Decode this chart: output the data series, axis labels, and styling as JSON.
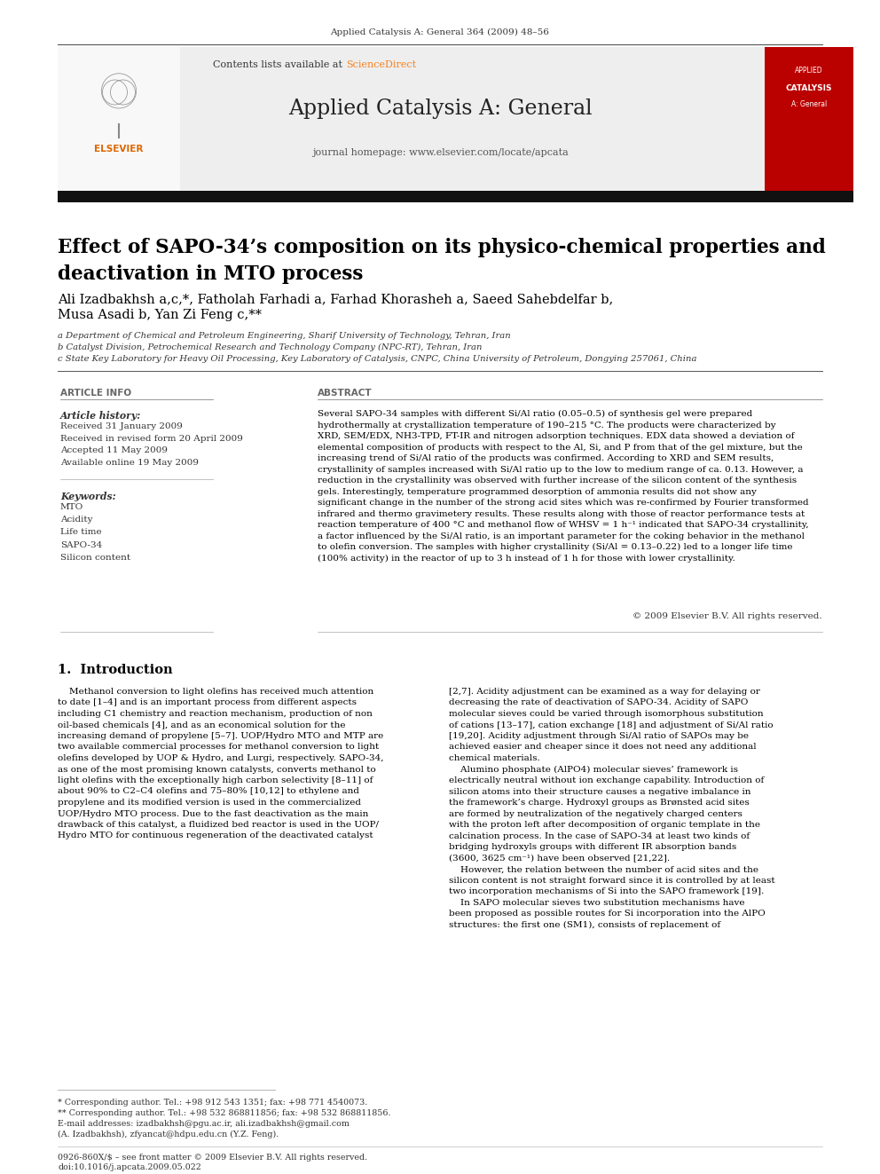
{
  "page_bg": "#ffffff",
  "header_journal": "Applied Catalysis A: General 364 (2009) 48–56",
  "header_contents": "Contents lists available at ",
  "header_sciencedirect": "ScienceDirect",
  "journal_title": "Applied Catalysis A: General",
  "journal_homepage": "journal homepage: www.elsevier.com/locate/apcata",
  "paper_title": "Effect of SAPO-34’s composition on its physico-chemical properties and\ndeactivation in MTO process",
  "authors_line1": "Ali Izadbakhsh a,c,*, Fatholah Farhadi a, Farhad Khorasheh a, Saeed Sahebdelfar b,",
  "authors_line2": "Musa Asadi b, Yan Zi Feng c,**",
  "affil_a": "a Department of Chemical and Petroleum Engineering, Sharif University of Technology, Tehran, Iran",
  "affil_b": "b Catalyst Division, Petrochemical Research and Technology Company (NPC-RT), Tehran, Iran",
  "affil_c": "c State Key Laboratory for Heavy Oil Processing, Key Laboratory of Catalysis, CNPC, China University of Petroleum, Dongying 257061, China",
  "article_info_header": "ARTICLE INFO",
  "article_history_label": "Article history:",
  "article_history": "Received 31 January 2009\nReceived in revised form 20 April 2009\nAccepted 11 May 2009\nAvailable online 19 May 2009",
  "keywords_label": "Keywords:",
  "keywords": "MTO\nAcidity\nLife time\nSAPO-34\nSilicon content",
  "abstract_header": "ABSTRACT",
  "abstract_text": "Several SAPO-34 samples with different Si/Al ratio (0.05–0.5) of synthesis gel were prepared\nhydrothermally at crystallization temperature of 190–215 °C. The products were characterized by\nXRD, SEM/EDX, NH3-TPD, FT-IR and nitrogen adsorption techniques. EDX data showed a deviation of\nelemental composition of products with respect to the Al, Si, and P from that of the gel mixture, but the\nincreasing trend of Si/Al ratio of the products was confirmed. According to XRD and SEM results,\ncrystallinity of samples increased with Si/Al ratio up to the low to medium range of ca. 0.13. However, a\nreduction in the crystallinity was observed with further increase of the silicon content of the synthesis\ngels. Interestingly, temperature programmed desorption of ammonia results did not show any\nsignificant change in the number of the strong acid sites which was re-confirmed by Fourier transformed\ninfrared and thermo gravimetery results. These results along with those of reactor performance tests at\nreaction temperature of 400 °C and methanol flow of WHSV = 1 h⁻¹ indicated that SAPO-34 crystallinity,\na factor influenced by the Si/Al ratio, is an important parameter for the coking behavior in the methanol\nto olefin conversion. The samples with higher crystallinity (Si/Al = 0.13–0.22) led to a longer life time\n(100% activity) in the reactor of up to 3 h instead of 1 h for those with lower crystallinity.",
  "copyright": "© 2009 Elsevier B.V. All rights reserved.",
  "section1_title": "1.  Introduction",
  "intro_left": "    Methanol conversion to light olefins has received much attention\nto date [1–4] and is an important process from different aspects\nincluding C1 chemistry and reaction mechanism, production of non\noil-based chemicals [4], and as an economical solution for the\nincreasing demand of propylene [5–7]. UOP/Hydro MTO and MTP are\ntwo available commercial processes for methanol conversion to light\nolefins developed by UOP & Hydro, and Lurgi, respectively. SAPO-34,\nas one of the most promising known catalysts, converts methanol to\nlight olefins with the exceptionally high carbon selectivity [8–11] of\nabout 90% to C2–C4 olefins and 75–80% [10,12] to ethylene and\npropylene and its modified version is used in the commercialized\nUOP/Hydro MTO process. Due to the fast deactivation as the main\ndrawback of this catalyst, a fluidized bed reactor is used in the UOP/\nHydro MTO for continuous regeneration of the deactivated catalyst",
  "intro_right": "[2,7]. Acidity adjustment can be examined as a way for delaying or\ndecreasing the rate of deactivation of SAPO-34. Acidity of SAPO\nmolecular sieves could be varied through isomorphous substitution\nof cations [13–17], cation exchange [18] and adjustment of Si/Al ratio\n[19,20]. Acidity adjustment through Si/Al ratio of SAPOs may be\nachieved easier and cheaper since it does not need any additional\nchemical materials.\n    Alumino phosphate (AlPO4) molecular sieves’ framework is\nelectrically neutral without ion exchange capability. Introduction of\nsilicon atoms into their structure causes a negative imbalance in\nthe framework’s charge. Hydroxyl groups as Brønsted acid sites\nare formed by neutralization of the negatively charged centers\nwith the proton left after decomposition of organic template in the\ncalcination process. In the case of SAPO-34 at least two kinds of\nbridging hydroxyls groups with different IR absorption bands\n(3600, 3625 cm⁻¹) have been observed [21,22].\n    However, the relation between the number of acid sites and the\nsilicon content is not straight forward since it is controlled by at least\ntwo incorporation mechanisms of Si into the SAPO framework [19].\n    In SAPO molecular sieves two substitution mechanisms have\nbeen proposed as possible routes for Si incorporation into the AlPO\nstructures: the first one (SM1), consists of replacement of",
  "footnote1": "* Corresponding author. Tel.: +98 912 543 1351; fax: +98 771 4540073.",
  "footnote2": "** Corresponding author. Tel.: +98 532 868811856; fax: +98 532 868811856.",
  "footnote3": "E-mail addresses: izadbakhsh@pgu.ac.ir, ali.izadbakhsh@gmail.com",
  "footnote4": "(A. Izadbakhsh), zfyancat@hdpu.edu.cn (Y.Z. Feng).",
  "bottom_bar": "0926-860X/$ – see front matter © 2009 Elsevier B.V. All rights reserved.",
  "bottom_doi": "doi:10.1016/j.apcata.2009.05.022"
}
